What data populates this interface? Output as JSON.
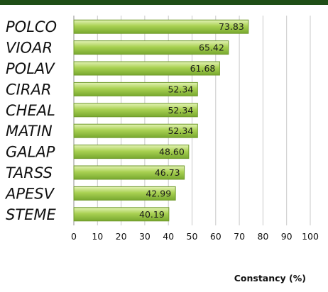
{
  "chart_data": {
    "type": "bar",
    "orientation": "horizontal",
    "categories": [
      "POLCO",
      "VIOAR",
      "POLAV",
      "CIRAR",
      "CHEAL",
      "MATIN",
      "GALAP",
      "TARSS",
      "APESV",
      "STEME"
    ],
    "values": [
      73.83,
      65.42,
      61.68,
      52.34,
      52.34,
      52.34,
      48.6,
      46.73,
      42.99,
      40.19
    ],
    "value_labels": [
      "73.83",
      "65.42",
      "61.68",
      "52.34",
      "52.34",
      "52.34",
      "48.60",
      "46.73",
      "42.99",
      "40.19"
    ],
    "xlabel": "Constancy (%)",
    "xlim": [
      0,
      100
    ],
    "xticks": [
      0,
      10,
      20,
      30,
      40,
      50,
      60,
      70,
      80,
      90,
      100
    ],
    "grid": true,
    "bar_color": "#9bcc46",
    "bar_edge_color": "#6f9a2a",
    "header_bar_color": "#1f4e17"
  }
}
